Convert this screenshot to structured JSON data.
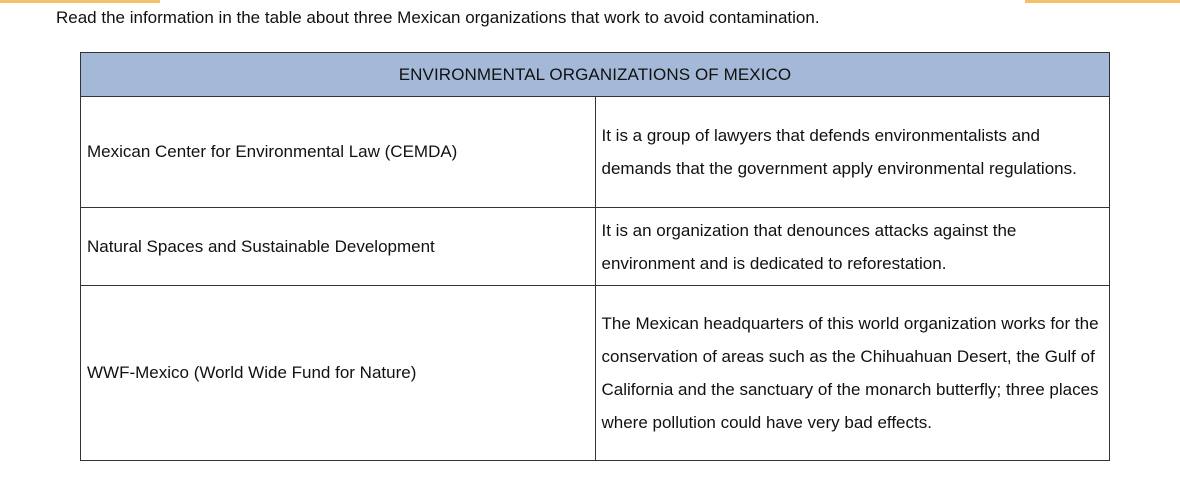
{
  "intro_text": "Read the information in the table about three Mexican organizations that work to avoid contamination.",
  "table": {
    "title": "ENVIRONMENTAL ORGANIZATIONS OF MEXICO",
    "header_color": "#a4b9d7",
    "rows": [
      {
        "name": "Mexican Center for Environmental Law (CEMDA)",
        "description": "It is a group of lawyers that defends environmentalists and demands that the government apply environmental regulations."
      },
      {
        "name": "Natural Spaces and Sustainable Development",
        "description": "It is an organization that denounces attacks against the environment and is dedicated to reforestation."
      },
      {
        "name": "WWF-Mexico (World Wide Fund for Nature)",
        "description": "The Mexican headquarters of this world organization works for the conservation of areas such as the Chihuahuan Desert, the Gulf of California and the sanctuary of the monarch butterfly; three places where pollution could have very bad effects."
      }
    ]
  }
}
